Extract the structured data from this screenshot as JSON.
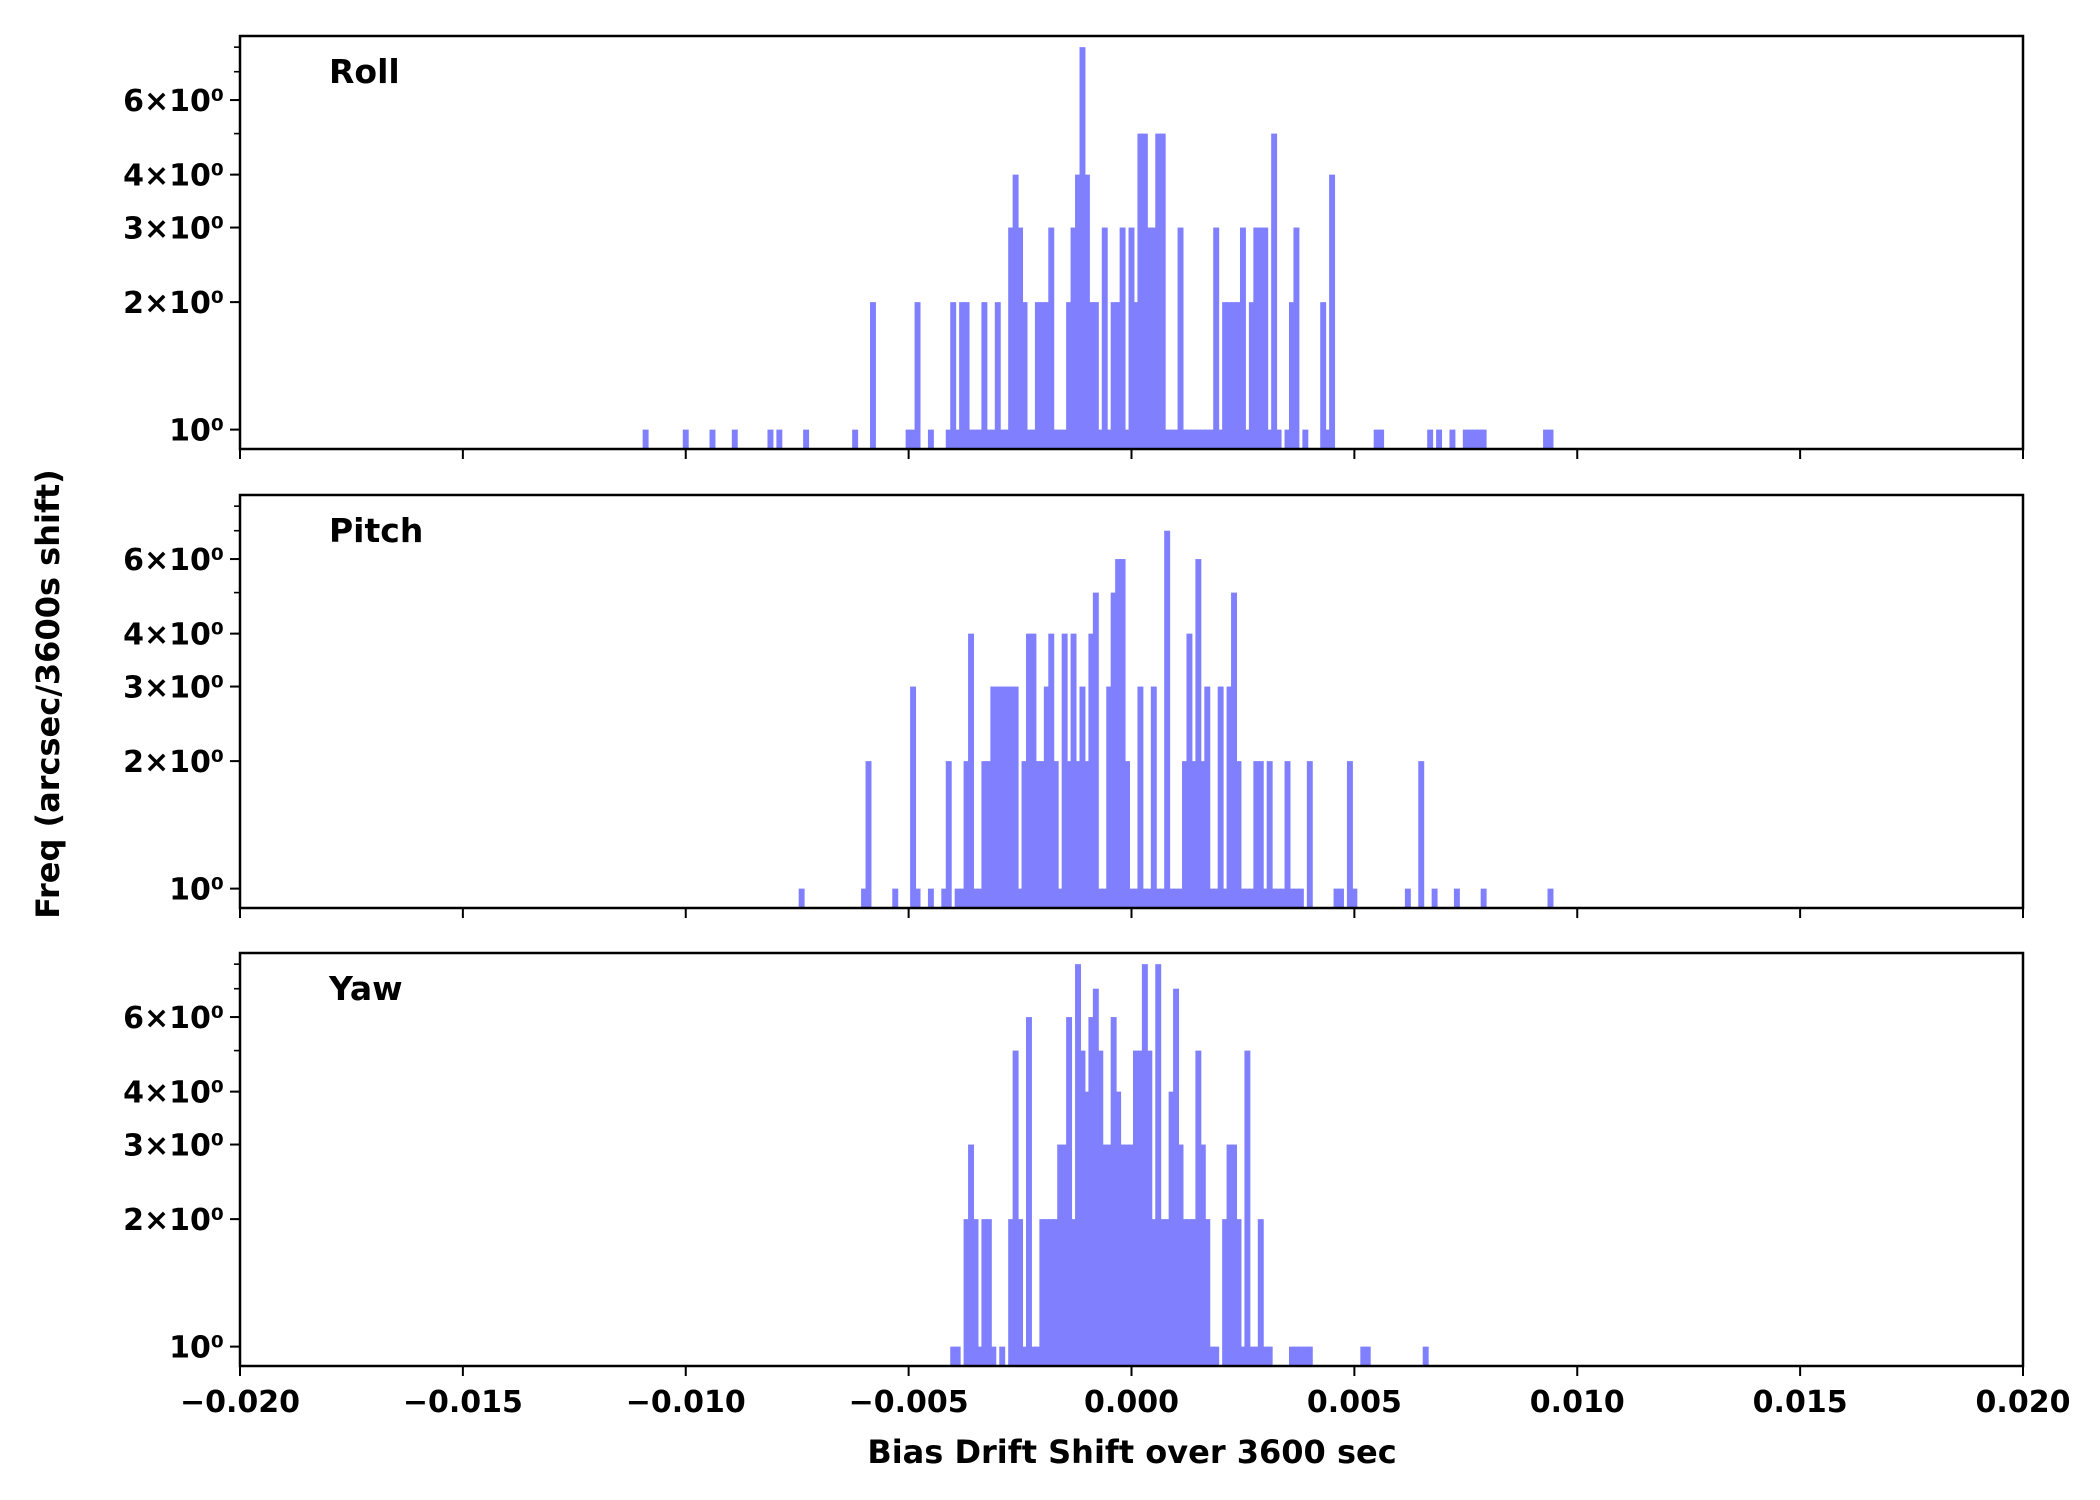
{
  "chart_data": {
    "type": "histogram",
    "xlabel": "Bias Drift Shift over 3600 sec",
    "ylabel": "Freq (arcsec/3600s shift)",
    "xlim": [
      -0.02,
      0.02
    ],
    "x_ticks": [
      -0.02,
      -0.015,
      -0.01,
      -0.005,
      0.0,
      0.005,
      0.01,
      0.015,
      0.02
    ],
    "x_tick_labels": [
      "−0.020",
      "−0.015",
      "−0.010",
      "−0.005",
      "0.000",
      "0.005",
      "0.010",
      "0.015",
      "0.020"
    ],
    "y_scale": "log",
    "ylim": [
      0.9,
      8.5
    ],
    "y_ticks": [
      1,
      2,
      3,
      4,
      6
    ],
    "y_tick_labels": [
      "10⁰",
      "2×10⁰",
      "3×10⁰",
      "4×10⁰",
      "6×10⁰"
    ],
    "bar_color": "#8080ff",
    "bin_width": 0.0001333,
    "panels": [
      {
        "name": "Roll",
        "bars": [
          [
            -0.0109,
            1
          ],
          [
            -0.01,
            1
          ],
          [
            -0.0094,
            1
          ],
          [
            -0.0089,
            1
          ],
          [
            -0.0081,
            1
          ],
          [
            -0.0079,
            1
          ],
          [
            -0.0073,
            1
          ],
          [
            -0.0062,
            1
          ],
          [
            -0.0058,
            2
          ],
          [
            -0.005,
            1
          ],
          [
            -0.0049,
            1
          ],
          [
            -0.0048,
            2
          ],
          [
            -0.0045,
            1
          ],
          [
            -0.0041,
            1
          ],
          [
            -0.004,
            2
          ],
          [
            -0.0039,
            1
          ],
          [
            -0.0038,
            2
          ],
          [
            -0.0037,
            2
          ],
          [
            -0.0036,
            1
          ],
          [
            -0.0035,
            1
          ],
          [
            -0.0034,
            1
          ],
          [
            -0.0033,
            2
          ],
          [
            -0.0032,
            1
          ],
          [
            -0.0031,
            1
          ],
          [
            -0.003,
            2
          ],
          [
            -0.0029,
            1
          ],
          [
            -0.0028,
            1
          ],
          [
            -0.0027,
            3
          ],
          [
            -0.0026,
            4
          ],
          [
            -0.0025,
            3
          ],
          [
            -0.0024,
            2
          ],
          [
            -0.0023,
            1
          ],
          [
            -0.0022,
            1
          ],
          [
            -0.0021,
            2
          ],
          [
            -0.002,
            2
          ],
          [
            -0.0019,
            2
          ],
          [
            -0.0018,
            3
          ],
          [
            -0.0017,
            1
          ],
          [
            -0.0016,
            1
          ],
          [
            -0.0015,
            1
          ],
          [
            -0.0014,
            2
          ],
          [
            -0.0013,
            3
          ],
          [
            -0.0012,
            4
          ],
          [
            -0.0011,
            8
          ],
          [
            -0.001,
            4
          ],
          [
            -0.0009,
            2
          ],
          [
            -0.0008,
            2
          ],
          [
            -0.0007,
            1
          ],
          [
            -0.0006,
            3
          ],
          [
            -0.0005,
            1
          ],
          [
            -0.0004,
            2
          ],
          [
            -0.0003,
            2
          ],
          [
            -0.0002,
            3
          ],
          [
            -0.0001,
            1
          ],
          [
            0.0,
            3
          ],
          [
            0.0001,
            2
          ],
          [
            0.0002,
            5
          ],
          [
            0.0003,
            5
          ],
          [
            0.0004,
            3
          ],
          [
            0.0005,
            3
          ],
          [
            0.0006,
            5
          ],
          [
            0.0007,
            5
          ],
          [
            0.0008,
            1
          ],
          [
            0.0009,
            1
          ],
          [
            0.001,
            1
          ],
          [
            0.0011,
            3
          ],
          [
            0.0012,
            1
          ],
          [
            0.0013,
            1
          ],
          [
            0.0014,
            1
          ],
          [
            0.0015,
            1
          ],
          [
            0.0016,
            1
          ],
          [
            0.0017,
            1
          ],
          [
            0.0018,
            1
          ],
          [
            0.0019,
            3
          ],
          [
            0.002,
            1
          ],
          [
            0.0021,
            2
          ],
          [
            0.0022,
            2
          ],
          [
            0.0023,
            2
          ],
          [
            0.0024,
            2
          ],
          [
            0.0025,
            3
          ],
          [
            0.0026,
            1
          ],
          [
            0.0027,
            2
          ],
          [
            0.0028,
            3
          ],
          [
            0.0029,
            3
          ],
          [
            0.003,
            3
          ],
          [
            0.0031,
            1
          ],
          [
            0.0032,
            5
          ],
          [
            0.0033,
            1
          ],
          [
            0.0035,
            1
          ],
          [
            0.0036,
            2
          ],
          [
            0.0037,
            3
          ],
          [
            0.0039,
            1
          ],
          [
            0.0043,
            2
          ],
          [
            0.0044,
            1
          ],
          [
            0.0045,
            4
          ],
          [
            0.0055,
            1
          ],
          [
            0.0056,
            1
          ],
          [
            0.0067,
            1
          ],
          [
            0.0069,
            1
          ],
          [
            0.0072,
            1
          ],
          [
            0.0075,
            1
          ],
          [
            0.0076,
            1
          ],
          [
            0.0077,
            1
          ],
          [
            0.0078,
            1
          ],
          [
            0.0079,
            1
          ],
          [
            0.0093,
            1
          ],
          [
            0.0094,
            1
          ]
        ]
      },
      {
        "name": "Pitch",
        "bars": [
          [
            -0.0074,
            1
          ],
          [
            -0.006,
            1
          ],
          [
            -0.0059,
            2
          ],
          [
            -0.0053,
            1
          ],
          [
            -0.0049,
            3
          ],
          [
            -0.0048,
            1
          ],
          [
            -0.0045,
            1
          ],
          [
            -0.0042,
            1
          ],
          [
            -0.0041,
            2
          ],
          [
            -0.0039,
            1
          ],
          [
            -0.0038,
            1
          ],
          [
            -0.0037,
            2
          ],
          [
            -0.0036,
            4
          ],
          [
            -0.0035,
            1
          ],
          [
            -0.0034,
            1
          ],
          [
            -0.0033,
            2
          ],
          [
            -0.0032,
            2
          ],
          [
            -0.0031,
            3
          ],
          [
            -0.003,
            3
          ],
          [
            -0.0029,
            3
          ],
          [
            -0.0028,
            3
          ],
          [
            -0.0027,
            3
          ],
          [
            -0.0026,
            3
          ],
          [
            -0.0025,
            1
          ],
          [
            -0.0024,
            2
          ],
          [
            -0.0023,
            4
          ],
          [
            -0.0022,
            4
          ],
          [
            -0.0021,
            2
          ],
          [
            -0.002,
            2
          ],
          [
            -0.0019,
            3
          ],
          [
            -0.0018,
            4
          ],
          [
            -0.0017,
            2
          ],
          [
            -0.0016,
            1
          ],
          [
            -0.0015,
            4
          ],
          [
            -0.0014,
            2
          ],
          [
            -0.0013,
            4
          ],
          [
            -0.0012,
            2
          ],
          [
            -0.0011,
            3
          ],
          [
            -0.001,
            2
          ],
          [
            -0.0009,
            4
          ],
          [
            -0.0008,
            5
          ],
          [
            -0.0007,
            1
          ],
          [
            -0.0006,
            1
          ],
          [
            -0.0005,
            3
          ],
          [
            -0.0004,
            5
          ],
          [
            -0.0003,
            6
          ],
          [
            -0.0002,
            6
          ],
          [
            -0.0001,
            2
          ],
          [
            0.0,
            1
          ],
          [
            0.0001,
            1
          ],
          [
            0.0002,
            3
          ],
          [
            0.0003,
            1
          ],
          [
            0.0004,
            1
          ],
          [
            0.0005,
            3
          ],
          [
            0.0006,
            1
          ],
          [
            0.0007,
            1
          ],
          [
            0.0008,
            7
          ],
          [
            0.0009,
            1
          ],
          [
            0.001,
            1
          ],
          [
            0.0011,
            1
          ],
          [
            0.0012,
            2
          ],
          [
            0.0013,
            4
          ],
          [
            0.0014,
            2
          ],
          [
            0.0015,
            6
          ],
          [
            0.0016,
            2
          ],
          [
            0.0017,
            3
          ],
          [
            0.0018,
            1
          ],
          [
            0.0019,
            1
          ],
          [
            0.002,
            3
          ],
          [
            0.0021,
            1
          ],
          [
            0.0022,
            3
          ],
          [
            0.0023,
            5
          ],
          [
            0.0024,
            2
          ],
          [
            0.0025,
            1
          ],
          [
            0.0026,
            1
          ],
          [
            0.0027,
            1
          ],
          [
            0.0028,
            2
          ],
          [
            0.0029,
            2
          ],
          [
            0.003,
            1
          ],
          [
            0.0031,
            2
          ],
          [
            0.0032,
            1
          ],
          [
            0.0033,
            1
          ],
          [
            0.0034,
            1
          ],
          [
            0.0035,
            2
          ],
          [
            0.0036,
            1
          ],
          [
            0.0037,
            1
          ],
          [
            0.0038,
            1
          ],
          [
            0.004,
            2
          ],
          [
            0.0046,
            1
          ],
          [
            0.0047,
            1
          ],
          [
            0.0049,
            2
          ],
          [
            0.005,
            1
          ],
          [
            0.0062,
            1
          ],
          [
            0.0065,
            2
          ],
          [
            0.0068,
            1
          ],
          [
            0.0073,
            1
          ],
          [
            0.0079,
            1
          ],
          [
            0.0094,
            1
          ]
        ]
      },
      {
        "name": "Yaw",
        "bars": [
          [
            -0.004,
            1
          ],
          [
            -0.0039,
            1
          ],
          [
            -0.0037,
            2
          ],
          [
            -0.0036,
            3
          ],
          [
            -0.0035,
            2
          ],
          [
            -0.0034,
            1
          ],
          [
            -0.0033,
            2
          ],
          [
            -0.0032,
            2
          ],
          [
            -0.0031,
            1
          ],
          [
            -0.0029,
            1
          ],
          [
            -0.0027,
            2
          ],
          [
            -0.0026,
            5
          ],
          [
            -0.0025,
            2
          ],
          [
            -0.0024,
            1
          ],
          [
            -0.0023,
            6
          ],
          [
            -0.0022,
            1
          ],
          [
            -0.0021,
            1
          ],
          [
            -0.002,
            2
          ],
          [
            -0.0019,
            2
          ],
          [
            -0.0018,
            2
          ],
          [
            -0.0017,
            2
          ],
          [
            -0.0016,
            3
          ],
          [
            -0.0015,
            3
          ],
          [
            -0.0014,
            6
          ],
          [
            -0.0013,
            2
          ],
          [
            -0.0012,
            8
          ],
          [
            -0.0011,
            5
          ],
          [
            -0.001,
            4
          ],
          [
            -0.0009,
            6
          ],
          [
            -0.0008,
            7
          ],
          [
            -0.0007,
            5
          ],
          [
            -0.0006,
            3
          ],
          [
            -0.0005,
            3
          ],
          [
            -0.0004,
            6
          ],
          [
            -0.0003,
            4
          ],
          [
            -0.0002,
            3
          ],
          [
            -0.0001,
            3
          ],
          [
            0.0,
            3
          ],
          [
            0.0001,
            5
          ],
          [
            0.0002,
            5
          ],
          [
            0.0003,
            8
          ],
          [
            0.0004,
            5
          ],
          [
            0.0005,
            2
          ],
          [
            0.0006,
            8
          ],
          [
            0.0007,
            2
          ],
          [
            0.0008,
            2
          ],
          [
            0.0009,
            4
          ],
          [
            0.001,
            7
          ],
          [
            0.0011,
            3
          ],
          [
            0.0012,
            2
          ],
          [
            0.0013,
            2
          ],
          [
            0.0014,
            2
          ],
          [
            0.0015,
            5
          ],
          [
            0.0016,
            3
          ],
          [
            0.0017,
            2
          ],
          [
            0.0018,
            1
          ],
          [
            0.0019,
            1
          ],
          [
            0.0021,
            2
          ],
          [
            0.0022,
            3
          ],
          [
            0.0023,
            3
          ],
          [
            0.0024,
            2
          ],
          [
            0.0025,
            1
          ],
          [
            0.0026,
            5
          ],
          [
            0.0027,
            1
          ],
          [
            0.0028,
            1
          ],
          [
            0.0029,
            2
          ],
          [
            0.003,
            1
          ],
          [
            0.0031,
            1
          ],
          [
            0.0036,
            1
          ],
          [
            0.0037,
            1
          ],
          [
            0.0038,
            1
          ],
          [
            0.0039,
            1
          ],
          [
            0.004,
            1
          ],
          [
            0.0052,
            1
          ],
          [
            0.0053,
            1
          ],
          [
            0.0066,
            1
          ]
        ]
      }
    ]
  }
}
